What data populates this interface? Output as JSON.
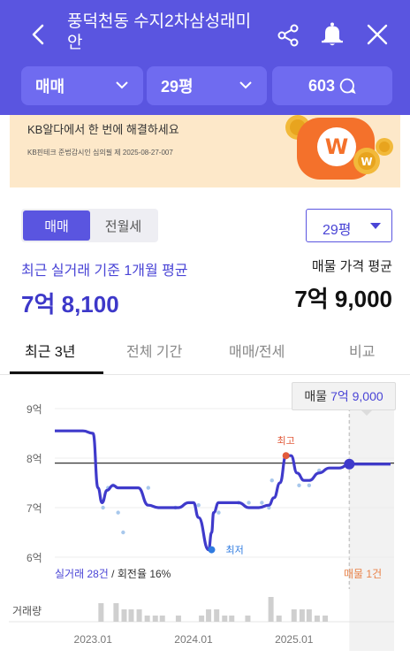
{
  "header": {
    "title": "풍덕천동 수지2차삼성래미안",
    "filters": {
      "trade_type": "매매",
      "size": "29평",
      "count": "603"
    }
  },
  "banner": {
    "text": "KB알다에서 한 번에 해결하세요",
    "fine_print": "KB핀테크 준법감시인 심의필 제 2025-08-27-007"
  },
  "segment": {
    "options": [
      "매매",
      "전월세"
    ],
    "selected": "매매"
  },
  "size_select": {
    "value": "29평"
  },
  "summary": {
    "avg_label": "최근 실거래 기준 1개월 평균",
    "avg_value": "7억 8,100",
    "ask_label": "매물 가격 평균",
    "ask_value": "7억 9,000"
  },
  "tabs": [
    {
      "label": "최근 3년",
      "active": true
    },
    {
      "label": "전체 기간",
      "active": false
    },
    {
      "label": "매매/전세",
      "active": false
    },
    {
      "label": "비교",
      "active": false
    }
  ],
  "chart_badge": {
    "label": "매물",
    "value": "7억 9,000"
  },
  "chart_footer": {
    "trades": "실거래 28건",
    "sep": " / ",
    "turnover": "회전율 16%",
    "listing": "매물 1건"
  },
  "volume_label": "거래량",
  "colors": {
    "brand": "#5a55e0",
    "accent_orange": "#e9834a",
    "point_red": "#e25a3b",
    "point_blue": "#2f7be0"
  },
  "chart_data": {
    "type": "line",
    "ylim": [
      6,
      9
    ],
    "y_ticks": [
      "9억",
      "8억",
      "7억",
      "6억"
    ],
    "y_tick_values": [
      9,
      8,
      7,
      6
    ],
    "x_ticks": [
      "2023.01",
      "2024.01",
      "2025.01"
    ],
    "x_tick_values": [
      2023.0,
      2024.0,
      2025.0
    ],
    "xlim": [
      2022.62,
      2025.96
    ],
    "series": [
      {
        "x": [
          2022.62,
          2022.9,
          2023.0,
          2023.05,
          2023.09,
          2023.14,
          2023.2,
          2023.25,
          2023.35,
          2023.45,
          2023.55,
          2023.65,
          2023.75,
          2023.85,
          2023.95,
          2024.0,
          2024.05,
          2024.15,
          2024.18,
          2024.2,
          2024.25,
          2024.35,
          2024.45,
          2024.55,
          2024.65,
          2024.75,
          2024.8,
          2024.86,
          2024.92,
          2024.97,
          2025.03,
          2025.1,
          2025.15,
          2025.25,
          2025.35,
          2025.45,
          2025.55,
          2025.96
        ],
        "y": [
          8.55,
          8.55,
          8.5,
          7.4,
          7.1,
          7.35,
          7.45,
          7.4,
          7.4,
          7.4,
          7.05,
          7.0,
          7.0,
          7.0,
          7.1,
          7.1,
          6.8,
          6.15,
          6.5,
          6.9,
          7.1,
          7.1,
          7.1,
          7.0,
          7.0,
          7.05,
          7.2,
          7.5,
          8.05,
          8.05,
          7.7,
          7.55,
          7.55,
          7.7,
          7.8,
          7.8,
          7.88,
          7.88
        ]
      }
    ],
    "scatter": {
      "x": [
        2023.1,
        2023.15,
        2023.2,
        2023.25,
        2023.3,
        2023.55,
        2023.82,
        2024.05,
        2024.25,
        2024.45,
        2024.55,
        2024.68,
        2024.75,
        2024.78,
        2024.92,
        2025.05,
        2025.15,
        2025.25
      ],
      "y": [
        7.0,
        7.4,
        7.45,
        6.9,
        6.5,
        7.4,
        7.0,
        7.05,
        6.9,
        7.1,
        7.1,
        7.1,
        7.0,
        7.55,
        8.05,
        7.45,
        7.45,
        7.75
      ]
    },
    "reference_line": {
      "y": 7.9
    },
    "annotations": [
      {
        "label": "최고",
        "x": 2024.92,
        "y": 8.05
      },
      {
        "label": "최저",
        "x": 2024.18,
        "y": 6.15
      }
    ],
    "current_marker": {
      "x": 2025.55,
      "y": 7.88
    },
    "volume": {
      "x": [
        2023.08,
        2023.23,
        2023.31,
        2023.38,
        2023.46,
        2023.54,
        2023.62,
        2023.69,
        2023.85,
        2024.08,
        2024.15,
        2024.23,
        2024.31,
        2024.38,
        2024.54,
        2024.77,
        2024.85,
        2025.0,
        2025.08,
        2025.15,
        2025.23,
        2025.31
      ],
      "values": [
        3,
        3,
        2,
        2,
        2,
        1,
        1,
        1,
        1,
        1,
        2,
        2,
        1,
        1,
        1,
        4,
        1,
        2,
        2,
        2,
        1,
        1
      ]
    },
    "grid": true
  }
}
